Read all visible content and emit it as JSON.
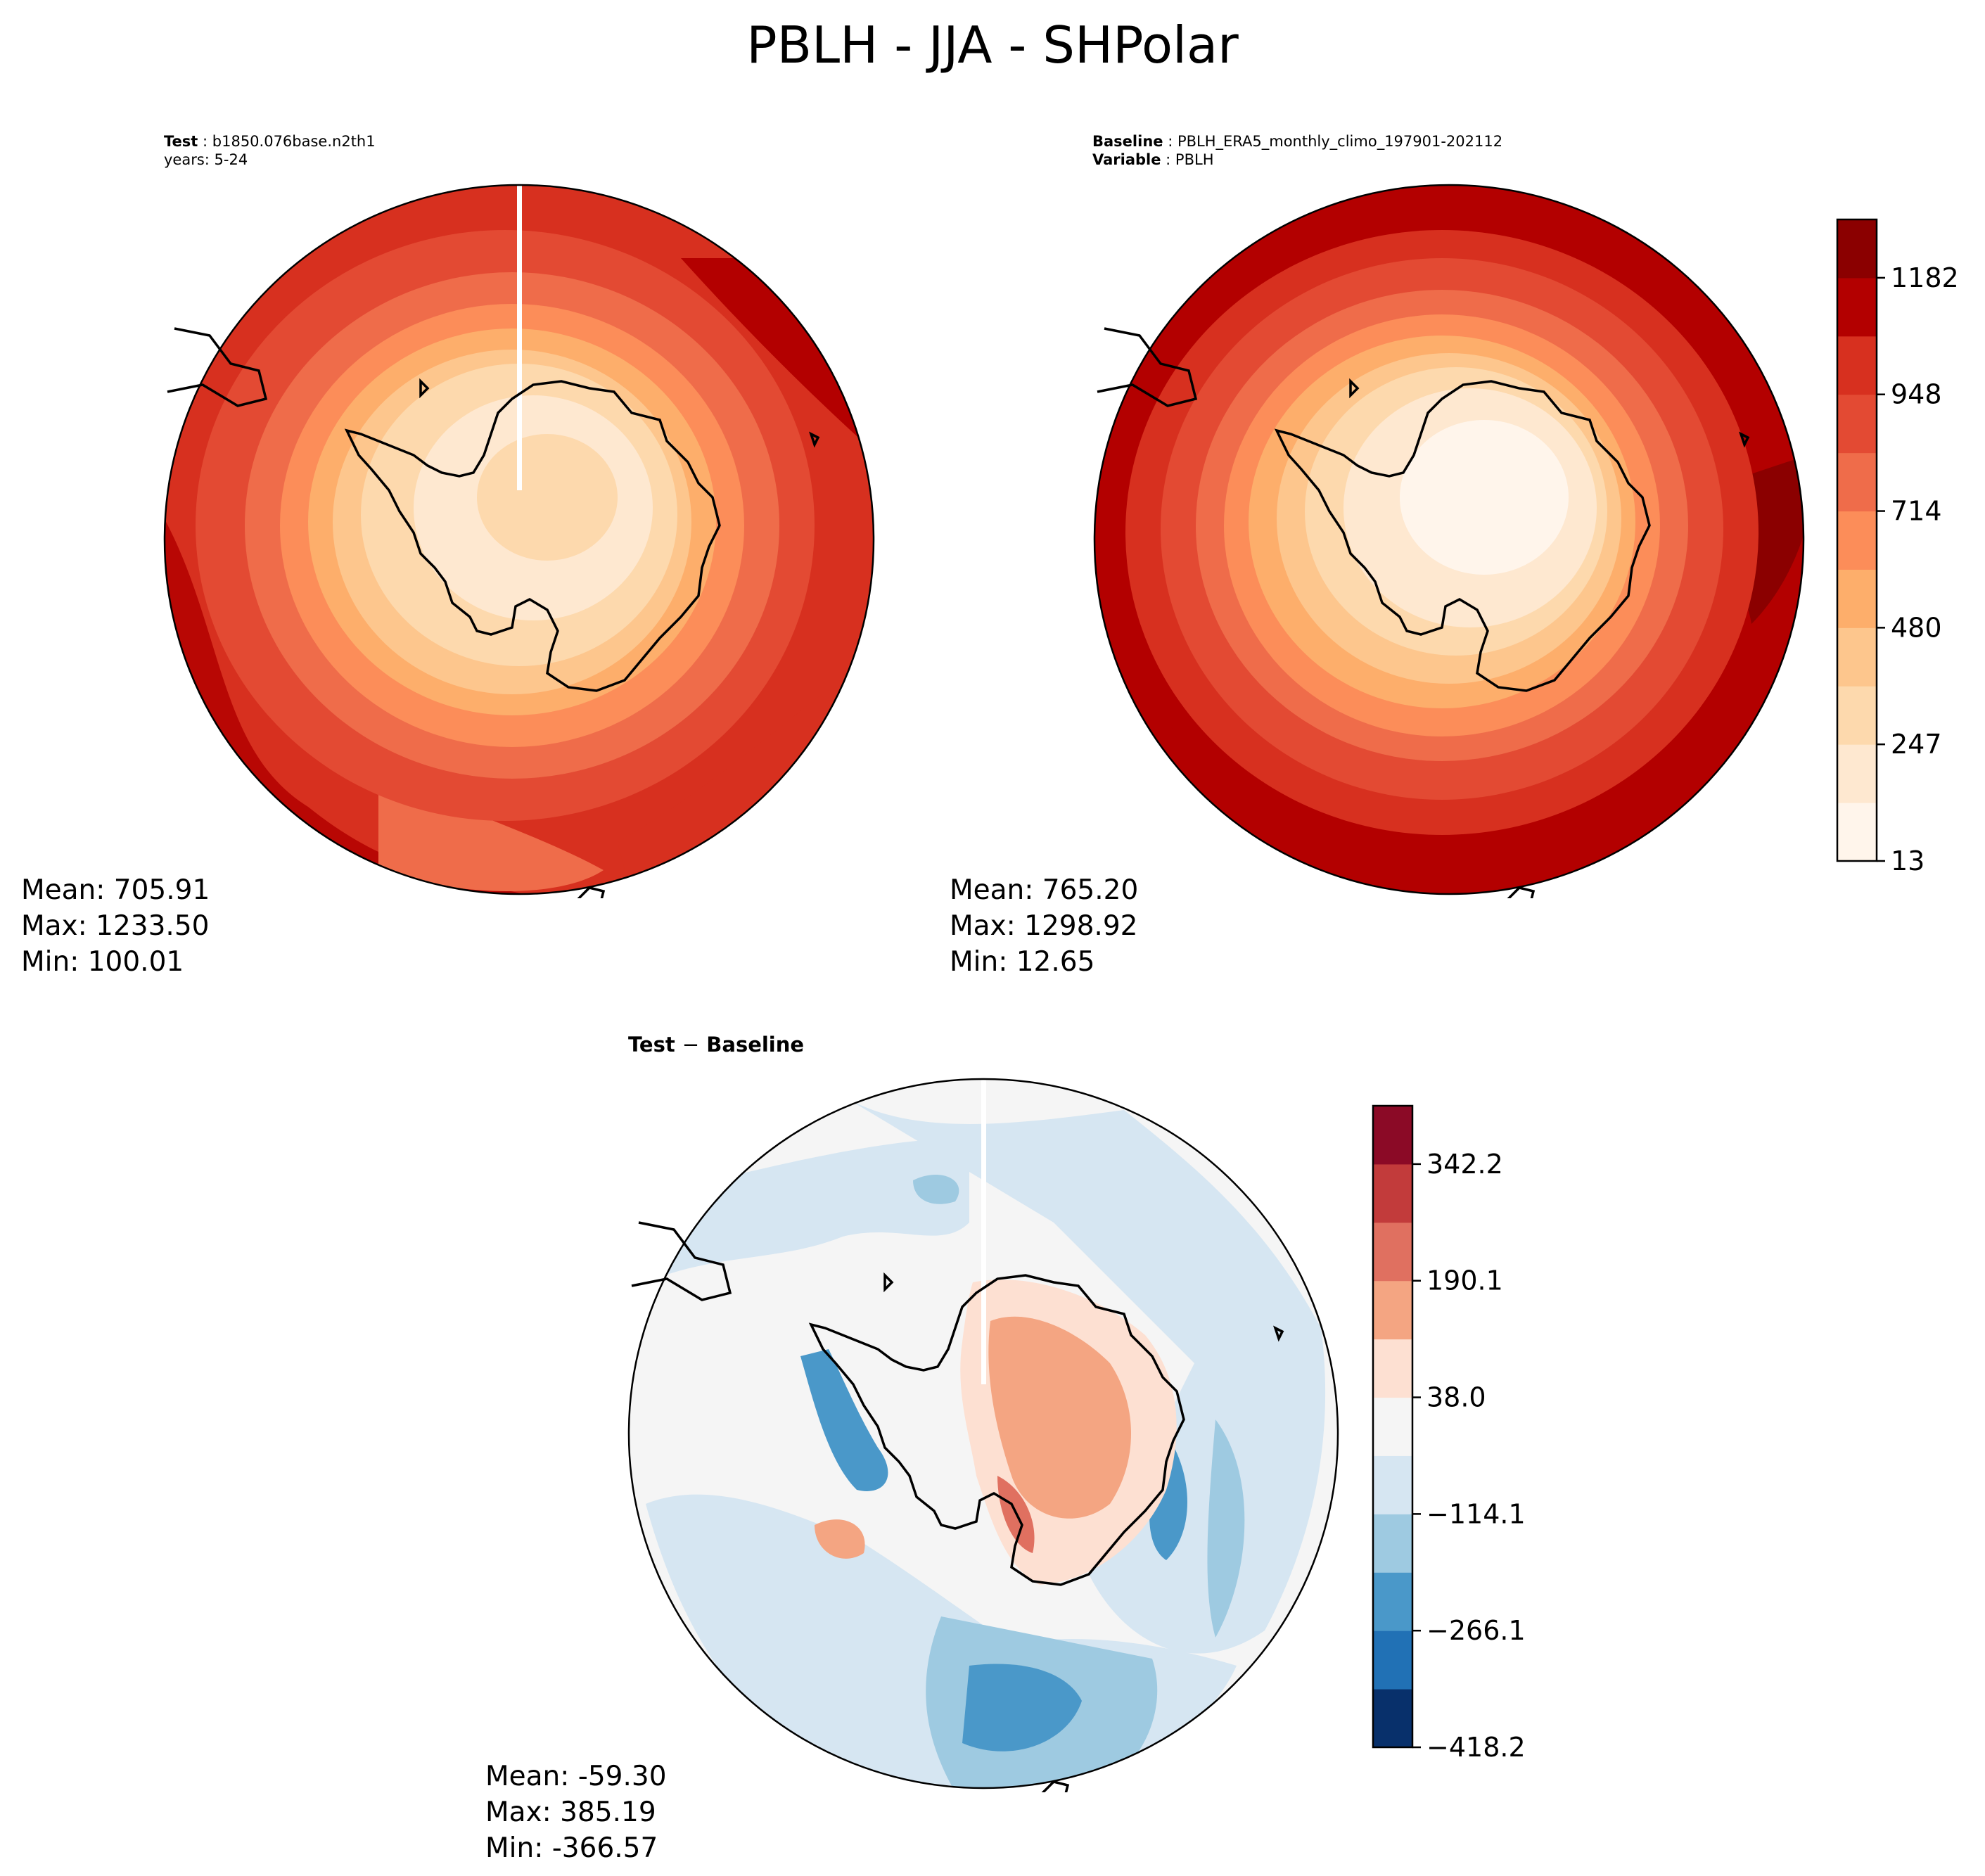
{
  "title": "PBLH - JJA - SHPolar",
  "test_panel": {
    "label": "Test",
    "case": "b1850.076base.n2th1",
    "years": "years: 5-24",
    "mean": "Mean: 705.91",
    "max": "Max: 1233.50",
    "min": "Min: 100.01"
  },
  "baseline_panel": {
    "label": "Baseline",
    "case": "PBLH_ERA5_monthly_climo_197901-202112",
    "variable_label": "Variable",
    "variable": "PBLH",
    "mean": "Mean: 765.20",
    "max": "Max: 1298.92",
    "min": "Min: 12.65"
  },
  "diff_panel": {
    "label_a": "Test",
    "label_sep": "−",
    "label_b": "Baseline",
    "mean": "Mean: -59.30",
    "max": "Max: 385.19",
    "min": "Min: -366.57"
  },
  "colors": {
    "abs_colormap": [
      "#fff5eb",
      "#fee8d0",
      "#fdd9ad",
      "#fdc68d",
      "#fdae6b",
      "#fc8d59",
      "#ef6c4a",
      "#e34a33",
      "#d7301f",
      "#b30000",
      "#8b0000"
    ],
    "diff_colormap": [
      "#08306b",
      "#2171b5",
      "#4a98c9",
      "#9ecae1",
      "#d6e6f2",
      "#f5f5f5",
      "#fde0d2",
      "#f4a582",
      "#e07060",
      "#c23b3b",
      "#8b0a26"
    ]
  },
  "chart_data": [
    {
      "type": "heatmap",
      "name": "Test",
      "projection": "south-polar-stereographic",
      "colorbar": false,
      "stats": {
        "mean": 705.91,
        "max": 1233.5,
        "min": 100.01
      }
    },
    {
      "type": "heatmap",
      "name": "Baseline",
      "projection": "south-polar-stereographic",
      "colorbar": true,
      "colorbar_ticks": [
        "13",
        "247",
        "480",
        "714",
        "948",
        "1182"
      ],
      "colorbar_range": [
        13,
        1300
      ],
      "stats": {
        "mean": 765.2,
        "max": 1298.92,
        "min": 12.65
      }
    },
    {
      "type": "heatmap",
      "name": "Test − Baseline",
      "projection": "south-polar-stereographic",
      "colorbar": true,
      "colorbar_ticks": [
        "−418.2",
        "−266.1",
        "−114.1",
        "38.0",
        "190.1",
        "342.2"
      ],
      "colorbar_range": [
        -418.2,
        418.2
      ],
      "stats": {
        "mean": -59.3,
        "max": 385.19,
        "min": -366.57
      }
    }
  ]
}
